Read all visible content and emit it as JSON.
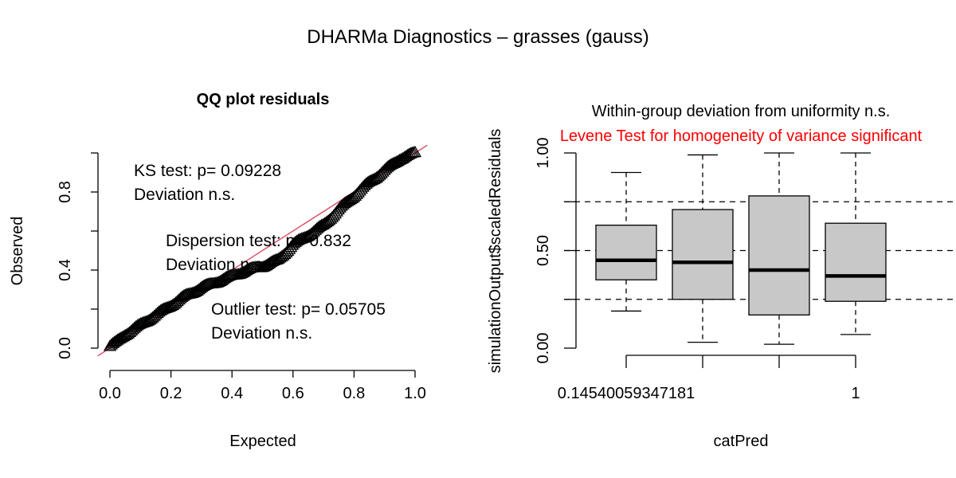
{
  "title": "DHARMa Diagnostics – grasses (gauss)",
  "colors": {
    "ref_line": "#DF536B",
    "box_fill": "#C8C8C8",
    "levene_text": "#FF0000",
    "ink": "#000000"
  },
  "chart_data": [
    {
      "type": "scatter",
      "title": "QQ plot residuals",
      "xlabel": "Expected",
      "ylabel": "Observed",
      "xlim": [
        0,
        1
      ],
      "ylim": [
        0,
        1
      ],
      "x_ticks": [
        "0.0",
        "0.2",
        "0.4",
        "0.6",
        "0.8",
        "1.0"
      ],
      "y_ticks": [
        "0.0",
        "0.4",
        "0.8"
      ],
      "marker": "open-triangle",
      "reference_line": {
        "intercept": 0,
        "slope": 1
      },
      "curve_points": [
        [
          0.0,
          0.01
        ],
        [
          0.02,
          0.03
        ],
        [
          0.05,
          0.07
        ],
        [
          0.1,
          0.12
        ],
        [
          0.15,
          0.17
        ],
        [
          0.2,
          0.22
        ],
        [
          0.25,
          0.27
        ],
        [
          0.3,
          0.31
        ],
        [
          0.35,
          0.34
        ],
        [
          0.4,
          0.37
        ],
        [
          0.45,
          0.4
        ],
        [
          0.5,
          0.42
        ],
        [
          0.55,
          0.45
        ],
        [
          0.6,
          0.53
        ],
        [
          0.65,
          0.58
        ],
        [
          0.7,
          0.63
        ],
        [
          0.75,
          0.71
        ],
        [
          0.8,
          0.78
        ],
        [
          0.85,
          0.85
        ],
        [
          0.9,
          0.91
        ],
        [
          0.95,
          0.97
        ],
        [
          1.0,
          1.0
        ]
      ],
      "annotations": [
        {
          "lines": [
            "KS test: p= 0.09228",
            "Deviation  n.s."
          ]
        },
        {
          "lines": [
            "Dispersion test: p= 0.832",
            "Deviation  n.s."
          ]
        },
        {
          "lines": [
            "Outlier test: p= 0.05705",
            "Deviation  n.s."
          ]
        }
      ]
    },
    {
      "type": "box",
      "title_lines": [
        "Within-group deviation from uniformity n.s.",
        "Levene Test for homogeneity of variance significant"
      ],
      "xlabel": "catPred",
      "ylabel": "simulationOutput$scaledResiduals",
      "ylim": [
        0,
        1
      ],
      "y_ticks": [
        "0.00",
        "0.50",
        "1.00"
      ],
      "x_tick_labels": [
        "0.14540059347181",
        "",
        "",
        "1"
      ],
      "hlines": [
        0.25,
        0.5,
        0.75
      ],
      "boxes": [
        {
          "min": 0.19,
          "q1": 0.35,
          "median": 0.45,
          "q3": 0.63,
          "max": 0.9
        },
        {
          "min": 0.03,
          "q1": 0.25,
          "median": 0.44,
          "q3": 0.71,
          "max": 0.99
        },
        {
          "min": 0.02,
          "q1": 0.17,
          "median": 0.4,
          "q3": 0.78,
          "max": 1.0
        },
        {
          "min": 0.07,
          "q1": 0.24,
          "median": 0.37,
          "q3": 0.64,
          "max": 1.0
        }
      ]
    }
  ]
}
